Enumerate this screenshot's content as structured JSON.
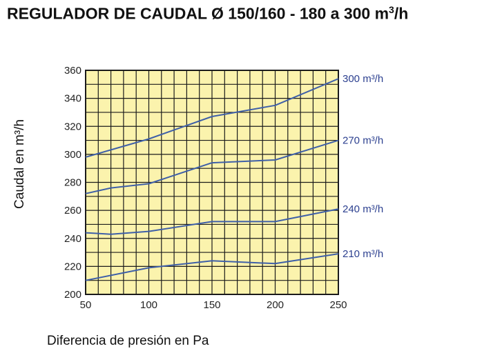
{
  "chart_data": {
    "type": "line",
    "title_main": "REGULADOR DE CAUDAL Ø 150/160 - 180 a 300 m",
    "title_sup": "3",
    "title_end": "/h",
    "xlabel": "Diferencia de presión en Pa",
    "ylabel": "Caudal en m³/h",
    "xlim": [
      50,
      250
    ],
    "ylim": [
      200,
      360
    ],
    "x_ticks": [
      "50",
      "100",
      "150",
      "200",
      "250"
    ],
    "y_ticks": [
      "200",
      "220",
      "240",
      "260",
      "280",
      "300",
      "320",
      "340",
      "360"
    ],
    "grid": true,
    "series": [
      {
        "name": "300 m³/h",
        "x": [
          50,
          100,
          150,
          200,
          250
        ],
        "y": [
          298,
          311,
          327,
          335,
          354
        ]
      },
      {
        "name": "270 m³/h",
        "x": [
          50,
          70,
          100,
          150,
          200,
          250
        ],
        "y": [
          272,
          276,
          279,
          294,
          296,
          310
        ]
      },
      {
        "name": "240 m³/h",
        "x": [
          50,
          70,
          100,
          150,
          200,
          250
        ],
        "y": [
          244,
          243,
          245,
          252,
          252,
          261
        ]
      },
      {
        "name": "210 m³/h",
        "x": [
          50,
          100,
          150,
          200,
          250
        ],
        "y": [
          210,
          219,
          224,
          222,
          229
        ]
      }
    ],
    "colors": {
      "background": "#fbf3ad",
      "grid": "#1a1a1a",
      "line": "#3e5fa8",
      "label": "#2b3f8f"
    }
  }
}
